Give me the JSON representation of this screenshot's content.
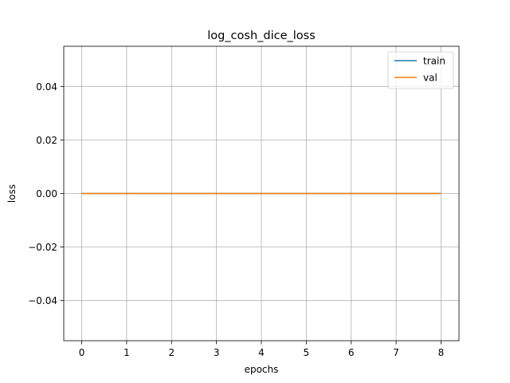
{
  "chart_data": {
    "type": "line",
    "title": "log_cosh_dice_loss",
    "xlabel": "epochs",
    "ylabel": "loss",
    "x": [
      0,
      1,
      2,
      3,
      4,
      5,
      6,
      7,
      8
    ],
    "series": [
      {
        "name": "train",
        "color": "#1f77b4",
        "values": [
          0,
          0,
          0,
          0,
          0,
          0,
          0,
          0,
          0
        ]
      },
      {
        "name": "val",
        "color": "#ff7f0e",
        "values": [
          0,
          0,
          0,
          0,
          0,
          0,
          0,
          0,
          0
        ]
      }
    ],
    "xlim": [
      -0.4,
      8.4
    ],
    "ylim": [
      -0.055,
      0.055
    ],
    "xticks": [
      0,
      1,
      2,
      3,
      4,
      5,
      6,
      7,
      8
    ],
    "xtick_labels": [
      "0",
      "1",
      "2",
      "3",
      "4",
      "5",
      "6",
      "7",
      "8"
    ],
    "yticks": [
      -0.04,
      -0.02,
      0.0,
      0.02,
      0.04
    ],
    "ytick_labels": [
      "−0.04",
      "−0.02",
      "0.00",
      "0.02",
      "0.04"
    ],
    "grid": true,
    "legend_position": "top-right"
  }
}
